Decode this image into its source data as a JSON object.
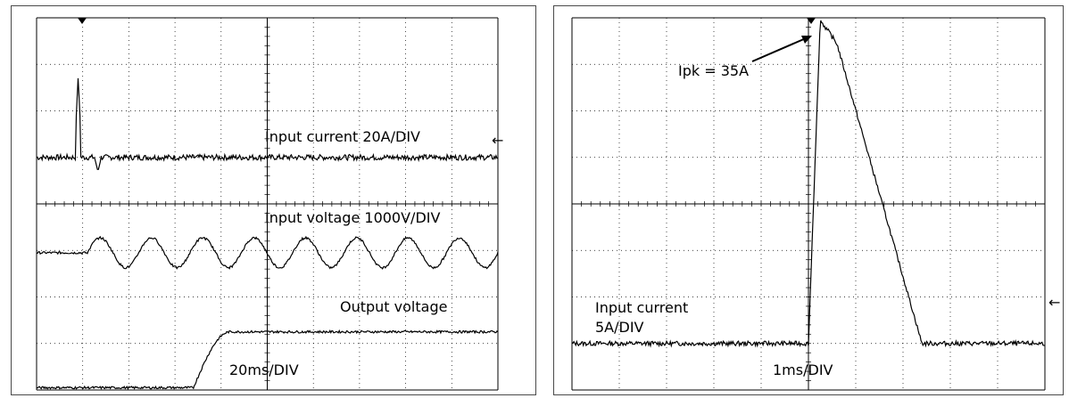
{
  "chart_data": [
    {
      "type": "line",
      "grid": true,
      "divisions": {
        "x": 10,
        "y": 8
      },
      "annotations": {
        "input_current": "Input current 20A/DIV",
        "input_voltage": "Input voltage 1000V/DIV",
        "output_voltage": "Output voltage",
        "timebase": "20ms/DIV"
      },
      "series": [
        {
          "name": "Input current",
          "units_per_div": "20A/DIV",
          "baseline_div": 5.0,
          "spike_time_div": 0.9,
          "spike_peak_div": 6.7,
          "spike_dip_div": 4.7
        },
        {
          "name": "Input voltage",
          "units_per_div": "1000V/DIV",
          "baseline_div": 2.95,
          "start_div": 1.1,
          "cycles": 8,
          "amplitude_div": 0.32
        },
        {
          "name": "Output voltage",
          "start_div": 3.4,
          "rise_end_div": 4.2,
          "low_div": 0.05,
          "high_div": 1.25
        }
      ]
    },
    {
      "type": "line",
      "grid": true,
      "divisions": {
        "x": 10,
        "y": 8
      },
      "annotations": {
        "peak": "Ipk = 35A",
        "channel": "Input current",
        "scale": "5A/DIV",
        "timebase": "1ms/DIV"
      },
      "series": [
        {
          "name": "Input current",
          "units_per_div": "5A/DIV",
          "baseline_div": 1.0,
          "rise_start_div": 5.0,
          "peak_time_div": 5.25,
          "peak_div": 7.95,
          "shoulder_time_div": 5.6,
          "shoulder_div": 7.45,
          "fall_end_div": 7.4
        }
      ]
    }
  ]
}
